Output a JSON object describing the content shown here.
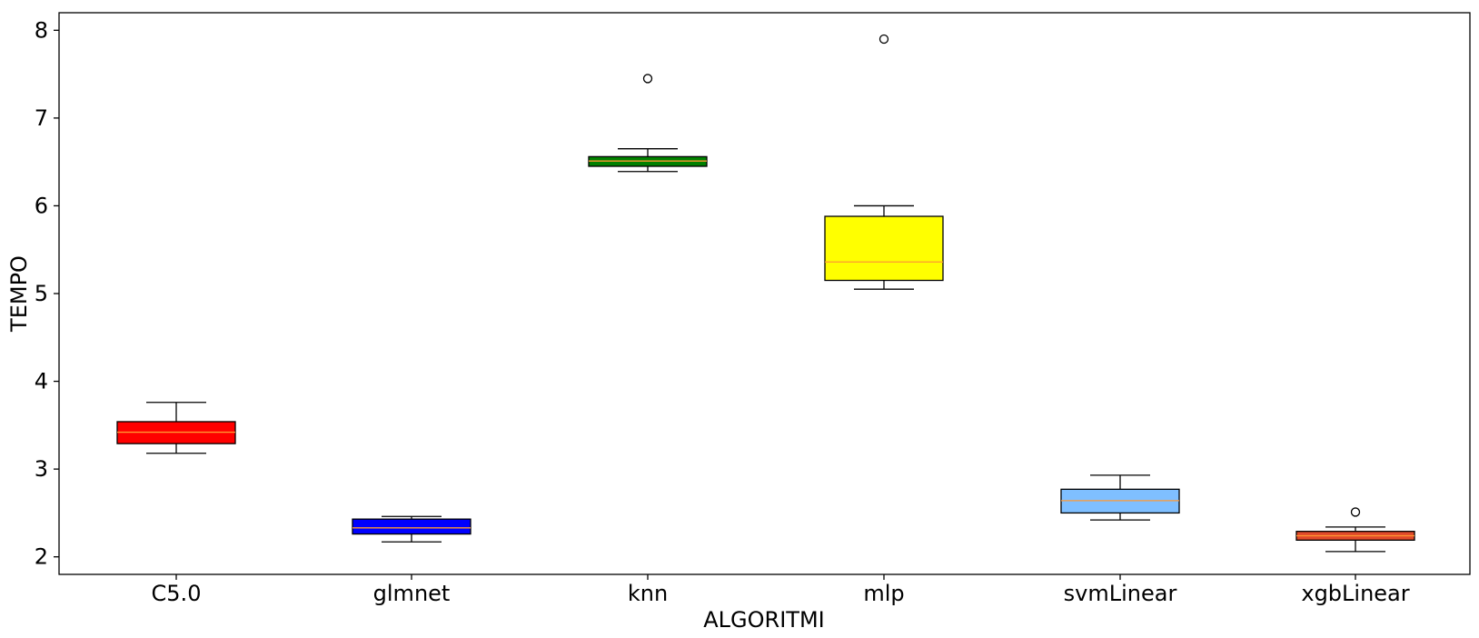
{
  "chart_data": {
    "type": "box",
    "xlabel": "ALGORITMI",
    "ylabel": "TEMPO",
    "ylim": [
      1.8,
      8.2
    ],
    "yticks": [
      2,
      3,
      4,
      5,
      6,
      7,
      8
    ],
    "grid": false,
    "categories": [
      "C5.0",
      "glmnet",
      "knn",
      "mlp",
      "svmLinear",
      "xgbLinear"
    ],
    "boxes": [
      {
        "label": "C5.0",
        "color": "#ff0000",
        "whisker_low": 3.18,
        "q1": 3.29,
        "median": 3.42,
        "q3": 3.54,
        "whisker_high": 3.76,
        "outliers": []
      },
      {
        "label": "glmnet",
        "color": "#0000ff",
        "whisker_low": 2.17,
        "q1": 2.26,
        "median": 2.33,
        "q3": 2.43,
        "whisker_high": 2.46,
        "outliers": []
      },
      {
        "label": "knn",
        "color": "#008000",
        "whisker_low": 6.39,
        "q1": 6.45,
        "median": 6.51,
        "q3": 6.56,
        "whisker_high": 6.65,
        "outliers": [
          7.45
        ]
      },
      {
        "label": "mlp",
        "color": "#ffff00",
        "whisker_low": 5.05,
        "q1": 5.15,
        "median": 5.36,
        "q3": 5.88,
        "whisker_high": 6.0,
        "outliers": [
          7.9
        ]
      },
      {
        "label": "svmLinear",
        "color": "#7fbfff",
        "whisker_low": 2.42,
        "q1": 2.5,
        "median": 2.64,
        "q3": 2.77,
        "whisker_high": 2.93,
        "outliers": []
      },
      {
        "label": "xgbLinear",
        "color": "#e04a2a",
        "whisker_low": 2.06,
        "q1": 2.19,
        "median": 2.24,
        "q3": 2.29,
        "whisker_high": 2.34,
        "outliers": [
          2.51
        ]
      }
    ],
    "median_color": "#ff9933"
  }
}
